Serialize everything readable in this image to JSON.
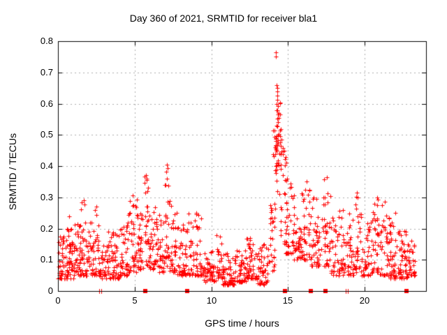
{
  "window": {
    "background": "#ffffff"
  },
  "chart_data": {
    "type": "scatter",
    "title": "Day 360 of 2021, SRMTID for receiver bla1",
    "xlabel": "GPS time / hours",
    "ylabel": "SRMTID / TECUs",
    "xlim": [
      0,
      24
    ],
    "ylim": [
      0,
      0.8
    ],
    "x_ticks": [
      0,
      5,
      10,
      15,
      20
    ],
    "y_ticks": [
      0,
      0.1,
      0.2,
      0.3,
      0.4,
      0.5,
      0.6,
      0.7,
      0.8
    ],
    "grid": true,
    "legend": "none",
    "marker": "plus",
    "marker_color": "#ff0000",
    "grid_color": "#ababab",
    "axis_color": "#000000",
    "series_name": "SRMTID",
    "seed": 7,
    "clusters": [
      [
        0.0,
        0.5,
        42,
        0.04,
        0.18,
        2.0
      ],
      [
        0.5,
        1.0,
        45,
        0.04,
        0.2,
        2.0
      ],
      [
        1.0,
        1.5,
        45,
        0.05,
        0.22,
        2.0
      ],
      [
        1.5,
        1.9,
        30,
        0.05,
        0.29,
        2.1
      ],
      [
        1.9,
        2.4,
        36,
        0.05,
        0.24,
        2.0
      ],
      [
        2.4,
        2.7,
        20,
        0.05,
        0.27,
        2.1
      ],
      [
        2.7,
        3.2,
        30,
        0.04,
        0.15,
        1.8
      ],
      [
        3.2,
        4.0,
        56,
        0.04,
        0.2,
        2.0
      ],
      [
        4.0,
        4.6,
        42,
        0.05,
        0.22,
        2.0
      ],
      [
        4.6,
        5.2,
        45,
        0.06,
        0.33,
        1.9
      ],
      [
        5.2,
        5.6,
        30,
        0.07,
        0.25,
        1.9
      ],
      [
        5.6,
        5.9,
        26,
        0.08,
        0.37,
        1.6
      ],
      [
        5.9,
        6.4,
        36,
        0.07,
        0.3,
        1.9
      ],
      [
        6.4,
        6.9,
        36,
        0.06,
        0.25,
        2.0
      ],
      [
        6.9,
        7.3,
        28,
        0.08,
        0.4,
        1.5
      ],
      [
        7.3,
        7.8,
        34,
        0.06,
        0.28,
        1.9
      ],
      [
        7.8,
        8.5,
        50,
        0.05,
        0.22,
        2.0
      ],
      [
        8.5,
        9.5,
        62,
        0.05,
        0.25,
        2.1
      ],
      [
        9.5,
        10.3,
        50,
        0.03,
        0.13,
        1.8
      ],
      [
        10.3,
        10.7,
        26,
        0.04,
        0.18,
        1.8
      ],
      [
        10.7,
        11.5,
        55,
        0.02,
        0.12,
        1.8
      ],
      [
        11.5,
        12.3,
        55,
        0.03,
        0.13,
        1.8
      ],
      [
        12.3,
        13.0,
        50,
        0.04,
        0.17,
        1.9
      ],
      [
        13.0,
        13.75,
        52,
        0.02,
        0.15,
        1.8
      ],
      [
        13.75,
        14.15,
        28,
        0.06,
        0.32,
        1.4
      ],
      [
        14.15,
        14.55,
        30,
        0.3,
        0.62,
        1.1
      ],
      [
        14.0,
        14.7,
        26,
        0.4,
        0.52,
        1.1
      ],
      [
        14.5,
        14.9,
        24,
        0.15,
        0.45,
        1.4
      ],
      [
        14.85,
        15.4,
        34,
        0.12,
        0.35,
        1.7
      ],
      [
        15.4,
        16.0,
        40,
        0.1,
        0.33,
        1.8
      ],
      [
        16.0,
        16.5,
        34,
        0.1,
        0.35,
        1.8
      ],
      [
        16.5,
        17.2,
        44,
        0.08,
        0.3,
        1.8
      ],
      [
        17.2,
        17.8,
        38,
        0.08,
        0.37,
        1.8
      ],
      [
        17.8,
        18.7,
        54,
        0.05,
        0.28,
        1.9
      ],
      [
        18.7,
        19.3,
        38,
        0.05,
        0.25,
        1.9
      ],
      [
        19.3,
        19.8,
        30,
        0.06,
        0.32,
        1.9
      ],
      [
        19.8,
        20.5,
        44,
        0.05,
        0.24,
        1.9
      ],
      [
        20.5,
        21.0,
        34,
        0.06,
        0.3,
        1.6
      ],
      [
        21.0,
        21.6,
        40,
        0.05,
        0.28,
        1.9
      ],
      [
        21.6,
        22.3,
        50,
        0.04,
        0.22,
        1.9
      ],
      [
        22.3,
        22.9,
        45,
        0.04,
        0.2,
        1.9
      ],
      [
        22.9,
        23.3,
        24,
        0.05,
        0.17,
        1.8
      ]
    ],
    "outliers": [
      [
        14.23,
        0.764
      ],
      [
        14.23,
        0.751
      ],
      [
        14.27,
        0.66
      ],
      [
        14.3,
        0.65
      ],
      [
        14.28,
        0.638
      ],
      [
        14.32,
        0.625
      ],
      [
        14.3,
        0.612
      ],
      [
        14.26,
        0.6
      ],
      [
        14.33,
        0.592
      ],
      [
        14.3,
        0.578
      ],
      [
        14.35,
        0.565
      ],
      [
        14.28,
        0.553
      ],
      [
        14.36,
        0.54
      ],
      [
        14.31,
        0.528
      ],
      [
        7.1,
        0.405
      ],
      [
        7.13,
        0.393
      ],
      [
        7.08,
        0.382
      ],
      [
        5.75,
        0.37
      ],
      [
        5.78,
        0.356
      ],
      [
        17.55,
        0.365
      ],
      [
        16.2,
        0.35
      ],
      [
        15.15,
        0.345
      ],
      [
        14.95,
        0.36
      ],
      [
        1.7,
        0.29
      ],
      [
        1.75,
        0.278
      ],
      [
        2.5,
        0.27
      ],
      [
        19.5,
        0.315
      ],
      [
        19.55,
        0.3
      ],
      [
        20.8,
        0.3
      ],
      [
        20.85,
        0.292
      ],
      [
        21.3,
        0.285
      ],
      [
        22.0,
        0.25
      ],
      [
        0.75,
        0.24
      ],
      [
        9.0,
        0.25
      ]
    ],
    "axis_markers": {
      "squares": [
        5.68,
        8.42,
        14.8,
        16.48,
        17.44,
        22.72
      ],
      "double_ticks": [
        2.69,
        2.82,
        18.76,
        18.9
      ]
    }
  }
}
